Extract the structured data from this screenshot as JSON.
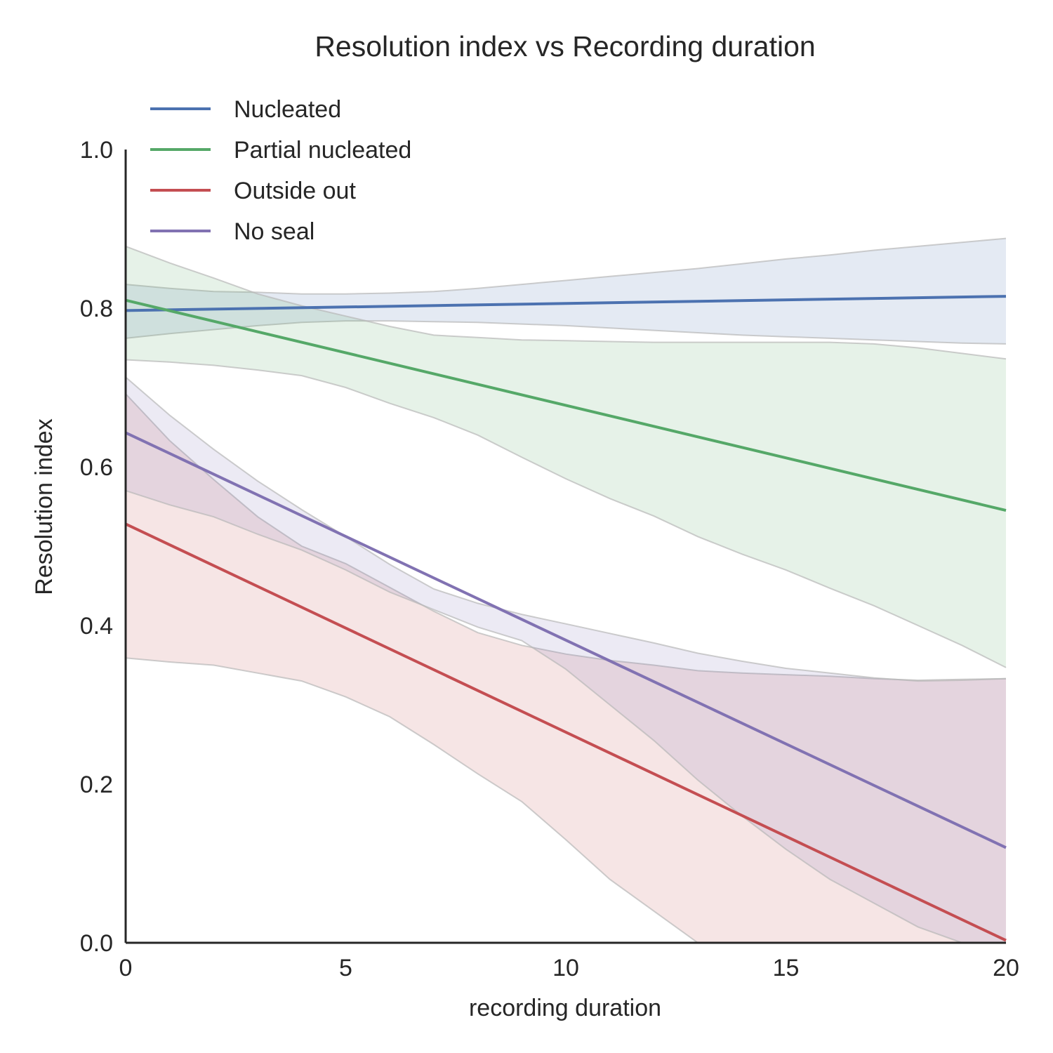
{
  "chart_data": {
    "type": "line",
    "title": "Resolution index vs Recording duration",
    "xlabel": "recording duration",
    "ylabel": "Resolution index",
    "xlim": [
      0,
      20
    ],
    "ylim": [
      0,
      1.0
    ],
    "xticks": [
      0,
      5,
      10,
      15,
      20
    ],
    "yticks": [
      0.0,
      0.2,
      0.4,
      0.6,
      0.8,
      1.0
    ],
    "xtick_labels": [
      "0",
      "5",
      "10",
      "15",
      "20"
    ],
    "ytick_labels": [
      "0.0",
      "0.2",
      "0.4",
      "0.6",
      "0.8",
      "1.0"
    ],
    "grid": false,
    "legend_position": "top-left",
    "band_x": [
      0,
      1,
      2,
      3,
      4,
      5,
      6,
      7,
      8,
      9,
      10,
      11,
      12,
      13,
      14,
      15,
      16,
      17,
      18,
      19,
      20
    ],
    "series": [
      {
        "name": "Nucleated",
        "color": "#4c72b0",
        "x": [
          0,
          20
        ],
        "y": [
          0.797,
          0.815
        ],
        "band_upper": [
          0.83,
          0.825,
          0.821,
          0.82,
          0.818,
          0.818,
          0.819,
          0.821,
          0.825,
          0.83,
          0.835,
          0.84,
          0.845,
          0.85,
          0.856,
          0.862,
          0.867,
          0.873,
          0.878,
          0.883,
          0.888
        ],
        "band_lower": [
          0.762,
          0.768,
          0.773,
          0.778,
          0.782,
          0.784,
          0.784,
          0.783,
          0.782,
          0.78,
          0.778,
          0.775,
          0.772,
          0.769,
          0.766,
          0.764,
          0.762,
          0.76,
          0.758,
          0.756,
          0.755
        ]
      },
      {
        "name": "Partial nucleated",
        "color": "#55a868",
        "x": [
          0,
          20
        ],
        "y": [
          0.81,
          0.545
        ],
        "band_upper": [
          0.878,
          0.857,
          0.838,
          0.818,
          0.803,
          0.79,
          0.777,
          0.766,
          0.763,
          0.76,
          0.759,
          0.758,
          0.757,
          0.757,
          0.757,
          0.757,
          0.757,
          0.755,
          0.75,
          0.743,
          0.736
        ],
        "band_lower": [
          0.735,
          0.732,
          0.728,
          0.722,
          0.715,
          0.7,
          0.68,
          0.662,
          0.64,
          0.612,
          0.585,
          0.56,
          0.538,
          0.512,
          0.49,
          0.47,
          0.447,
          0.425,
          0.4,
          0.375,
          0.347
        ]
      },
      {
        "name": "Outside out",
        "color": "#c44e52",
        "x": [
          0,
          20
        ],
        "y": [
          0.528,
          0.003
        ],
        "band_upper": [
          0.692,
          0.633,
          0.584,
          0.537,
          0.5,
          0.478,
          0.448,
          0.418,
          0.391,
          0.375,
          0.364,
          0.356,
          0.35,
          0.343,
          0.34,
          0.338,
          0.336,
          0.333,
          0.331,
          0.332,
          0.333
        ],
        "band_lower": [
          0.359,
          0.354,
          0.35,
          0.34,
          0.33,
          0.31,
          0.285,
          0.25,
          0.213,
          0.178,
          0.13,
          0.08,
          0.04,
          0.0,
          0.0,
          0.0,
          0.0,
          0.0,
          0.0,
          0.0,
          0.0
        ]
      },
      {
        "name": "No seal",
        "color": "#8172b2",
        "x": [
          0,
          20
        ],
        "y": [
          0.643,
          0.12
        ],
        "band_upper": [
          0.713,
          0.665,
          0.622,
          0.582,
          0.546,
          0.512,
          0.477,
          0.446,
          0.428,
          0.414,
          0.402,
          0.39,
          0.378,
          0.365,
          0.355,
          0.346,
          0.34,
          0.334,
          0.33,
          0.331,
          0.333
        ],
        "band_lower": [
          0.57,
          0.552,
          0.537,
          0.515,
          0.495,
          0.47,
          0.442,
          0.42,
          0.398,
          0.381,
          0.345,
          0.3,
          0.255,
          0.205,
          0.16,
          0.118,
          0.08,
          0.05,
          0.02,
          0.0,
          0.0
        ]
      }
    ]
  }
}
